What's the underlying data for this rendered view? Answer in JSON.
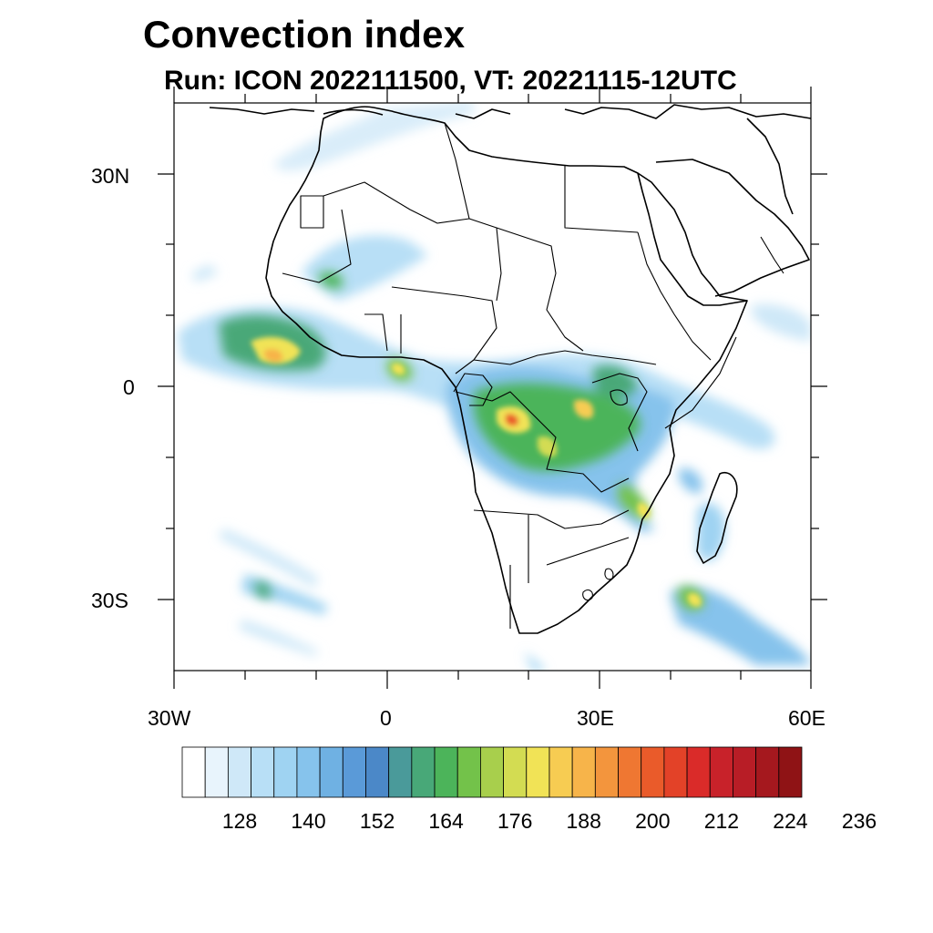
{
  "title": "Convection index",
  "subtitle": "Run: ICON 2022111500,  VT: 20221115-12UTC",
  "lat_labels": [
    "30N",
    "0",
    "30S"
  ],
  "lon_labels": [
    "30W",
    "0",
    "30E",
    "60E"
  ],
  "map_extent": {
    "lon_min": -30,
    "lon_max": 60,
    "lat_min": -40,
    "lat_max": 40
  },
  "colorbar": {
    "colors": [
      "#ffffff",
      "#e8f4fc",
      "#cfe8f8",
      "#b8dff6",
      "#9fd3f2",
      "#86c3ec",
      "#6fb1e3",
      "#5a9ad8",
      "#4b88c8",
      "#4a9a9a",
      "#48a878",
      "#4cb45a",
      "#73c24a",
      "#a8cf4c",
      "#d3dc52",
      "#f1e356",
      "#f7cc52",
      "#f7b44a",
      "#f3953d",
      "#ef7732",
      "#ea5b2a",
      "#e34228",
      "#da2b29",
      "#c8222a",
      "#b81d26",
      "#a5181e",
      "#8f1315"
    ],
    "tick_labels": [
      "128",
      "140",
      "152",
      "164",
      "176",
      "188",
      "200",
      "212",
      "224",
      "236"
    ]
  }
}
